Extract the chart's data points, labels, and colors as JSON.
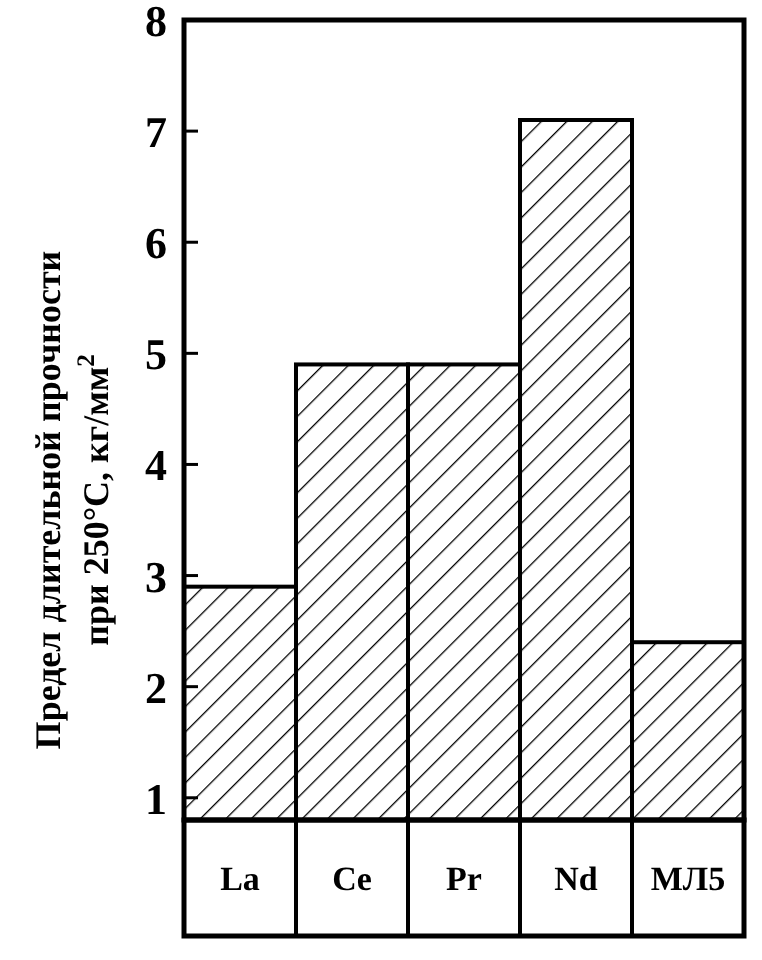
{
  "chart_data": {
    "type": "bar",
    "ylabel": "Предел длительной прочности\nпри 250°C, кг/мм$^{2}$",
    "categories": [
      "La",
      "Ce",
      "Pr",
      "Nd",
      "МЛ5"
    ],
    "values": [
      2.9,
      4.9,
      4.9,
      7.1,
      2.4
    ],
    "color": "#000000",
    "ylim": [
      0.8,
      8
    ],
    "yticks": [
      1,
      2,
      3,
      4,
      5,
      6,
      7,
      8
    ],
    "grid": false
  }
}
